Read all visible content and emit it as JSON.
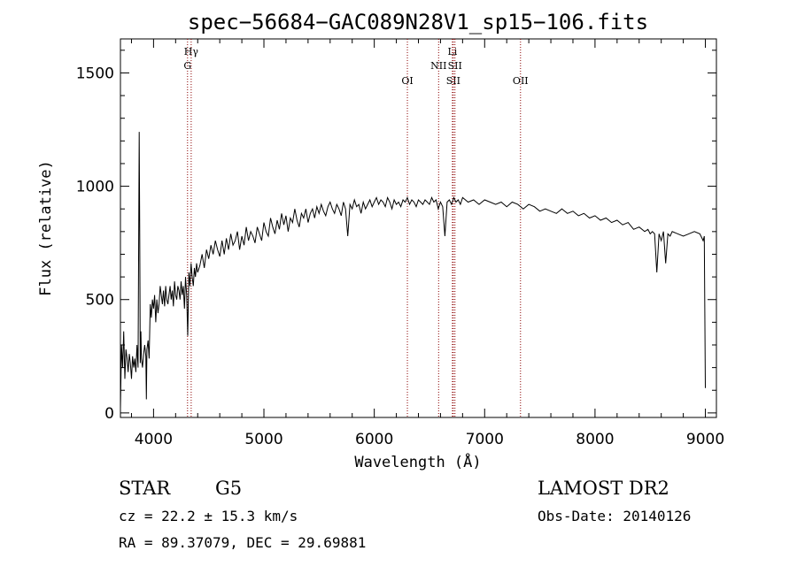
{
  "chart_data": {
    "type": "line",
    "title": "spec−56684−GAC089N28V1_sp15−106.fits",
    "xlabel": "Wavelength (Å)",
    "ylabel": "Flux (relative)",
    "xlim": [
      3700,
      9100
    ],
    "ylim": [
      -20,
      1650
    ],
    "xticks": [
      4000,
      5000,
      6000,
      7000,
      8000,
      9000
    ],
    "yticks": [
      0,
      500,
      1000,
      1500
    ],
    "grid": false,
    "line_color": "#000000",
    "marker_color": "#8b0000",
    "series": [
      {
        "x": [
          3700,
          3710,
          3720,
          3730,
          3740,
          3750,
          3760,
          3770,
          3780,
          3790,
          3800,
          3810,
          3820,
          3830,
          3840,
          3850,
          3860,
          3870,
          3875,
          3880,
          3885,
          3890,
          3900,
          3910,
          3920,
          3930,
          3935,
          3940,
          3950,
          3960,
          3970,
          3980,
          3990,
          4000,
          4010,
          4020,
          4030,
          4040,
          4050,
          4060,
          4070,
          4080,
          4090,
          4100,
          4110,
          4120,
          4130,
          4140,
          4150,
          4160,
          4170,
          4180,
          4190,
          4200,
          4210,
          4220,
          4230,
          4240,
          4250,
          4260,
          4270,
          4280,
          4290,
          4300,
          4310,
          4320,
          4330,
          4340,
          4350,
          4360,
          4370,
          4380,
          4390,
          4400,
          4420,
          4440,
          4460,
          4480,
          4500,
          4520,
          4540,
          4560,
          4580,
          4600,
          4620,
          4640,
          4660,
          4680,
          4700,
          4720,
          4740,
          4760,
          4780,
          4800,
          4820,
          4840,
          4860,
          4880,
          4900,
          4920,
          4940,
          4960,
          4980,
          5000,
          5020,
          5040,
          5060,
          5080,
          5100,
          5120,
          5140,
          5160,
          5180,
          5200,
          5220,
          5240,
          5260,
          5280,
          5300,
          5320,
          5340,
          5360,
          5380,
          5400,
          5420,
          5440,
          5460,
          5480,
          5500,
          5520,
          5540,
          5560,
          5580,
          5600,
          5620,
          5640,
          5660,
          5680,
          5700,
          5720,
          5740,
          5760,
          5780,
          5800,
          5820,
          5840,
          5860,
          5880,
          5900,
          5920,
          5940,
          5960,
          5980,
          6000,
          6020,
          6040,
          6060,
          6080,
          6100,
          6120,
          6140,
          6160,
          6180,
          6200,
          6220,
          6240,
          6260,
          6280,
          6300,
          6320,
          6340,
          6360,
          6380,
          6400,
          6420,
          6440,
          6460,
          6480,
          6500,
          6520,
          6540,
          6560,
          6570,
          6580,
          6600,
          6620,
          6640,
          6660,
          6680,
          6700,
          6720,
          6740,
          6760,
          6780,
          6800,
          6850,
          6900,
          6950,
          7000,
          7050,
          7100,
          7150,
          7200,
          7250,
          7300,
          7350,
          7400,
          7450,
          7500,
          7550,
          7600,
          7650,
          7700,
          7750,
          7800,
          7850,
          7900,
          7950,
          8000,
          8050,
          8100,
          8150,
          8200,
          8250,
          8300,
          8350,
          8400,
          8450,
          8480,
          8500,
          8520,
          8540,
          8560,
          8580,
          8600,
          8620,
          8640,
          8660,
          8680,
          8700,
          8750,
          8800,
          8850,
          8900,
          8950,
          8970,
          8980,
          8990,
          9000
        ],
        "y": [
          20,
          300,
          200,
          360,
          150,
          280,
          240,
          180,
          260,
          220,
          150,
          250,
          200,
          240,
          180,
          300,
          200,
          1240,
          780,
          220,
          360,
          240,
          200,
          260,
          300,
          250,
          60,
          280,
          320,
          240,
          480,
          420,
          500,
          460,
          520,
          400,
          500,
          440,
          480,
          560,
          520,
          480,
          540,
          470,
          560,
          500,
          480,
          520,
          560,
          500,
          540,
          470,
          580,
          520,
          500,
          560,
          540,
          500,
          580,
          520,
          560,
          460,
          600,
          520,
          340,
          620,
          560,
          660,
          600,
          560,
          640,
          600,
          660,
          620,
          650,
          700,
          640,
          720,
          680,
          740,
          700,
          760,
          720,
          690,
          760,
          700,
          770,
          720,
          790,
          740,
          760,
          800,
          720,
          780,
          740,
          820,
          760,
          800,
          780,
          750,
          820,
          790,
          760,
          840,
          800,
          780,
          860,
          820,
          790,
          850,
          810,
          880,
          830,
          870,
          800,
          860,
          840,
          900,
          850,
          820,
          880,
          860,
          900,
          840,
          880,
          900,
          860,
          910,
          880,
          920,
          890,
          870,
          910,
          930,
          900,
          880,
          920,
          900,
          870,
          930,
          900,
          780,
          920,
          900,
          940,
          910,
          920,
          880,
          930,
          900,
          920,
          940,
          910,
          930,
          950,
          920,
          940,
          930,
          910,
          950,
          930,
          900,
          940,
          920,
          930,
          910,
          940,
          930,
          950,
          920,
          940,
          930,
          910,
          940,
          930,
          920,
          940,
          930,
          920,
          950,
          930,
          940,
          920,
          900,
          930,
          910,
          780,
          930,
          940,
          920,
          950,
          930,
          940,
          920,
          950,
          930,
          940,
          920,
          940,
          930,
          920,
          930,
          910,
          930,
          920,
          900,
          920,
          910,
          890,
          900,
          890,
          880,
          900,
          880,
          890,
          870,
          880,
          860,
          870,
          850,
          860,
          840,
          850,
          830,
          840,
          810,
          820,
          800,
          810,
          790,
          800,
          790,
          620,
          790,
          760,
          800,
          660,
          790,
          780,
          800,
          790,
          780,
          790,
          800,
          790,
          770,
          760,
          780,
          110
        ]
      }
    ],
    "line_markers": [
      {
        "wavelength": 4308,
        "label": "G",
        "row": 2
      },
      {
        "wavelength": 4341,
        "label": "Hγ",
        "row": 1
      },
      {
        "wavelength": 6300,
        "label": "OI",
        "row": 3
      },
      {
        "wavelength": 6583,
        "label": "NII",
        "row": 2
      },
      {
        "wavelength": 6708,
        "label": "Li",
        "row": 1
      },
      {
        "wavelength": 6716,
        "label": "SII",
        "row": 3
      },
      {
        "wavelength": 6731,
        "label": "SII",
        "row": 2
      },
      {
        "wavelength": 7325,
        "label": "OII",
        "row": 3
      }
    ]
  },
  "info": {
    "class": "STAR",
    "subclass": "G5",
    "survey": "LAMOST DR2",
    "cz": "cz = 22.2 ± 15.3 km/s",
    "obs_date": "Obs-Date: 20140126",
    "coords": "RA =  89.37079, DEC =  29.69881"
  }
}
